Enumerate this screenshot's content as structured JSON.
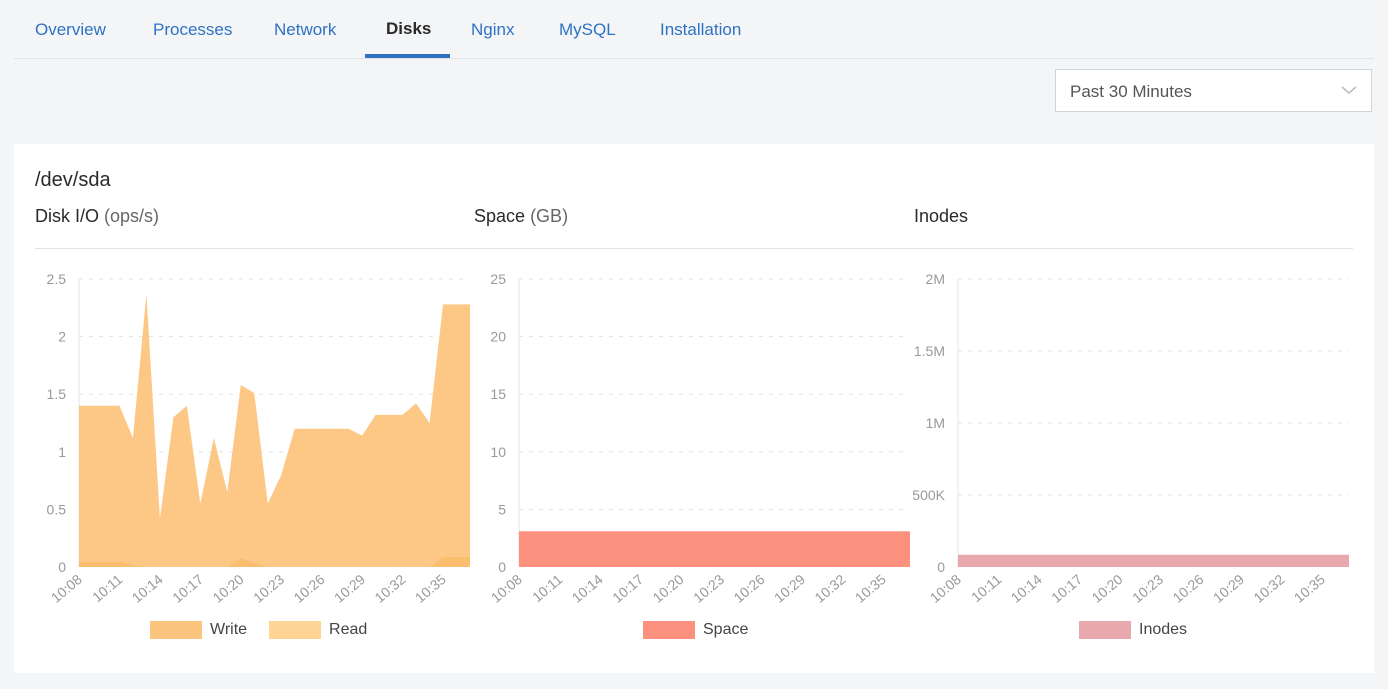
{
  "tabs": [
    {
      "label": "Overview",
      "active": false
    },
    {
      "label": "Processes",
      "active": false
    },
    {
      "label": "Network",
      "active": false
    },
    {
      "label": "Disks",
      "active": true
    },
    {
      "label": "Nginx",
      "active": false
    },
    {
      "label": "MySQL",
      "active": false
    },
    {
      "label": "Installation",
      "active": false
    }
  ],
  "time_range": {
    "selected": "Past 30 Minutes",
    "icon": "chevron-down-icon"
  },
  "device": "/dev/sda",
  "colors": {
    "accent": "#2f6ec0",
    "write": "#fdc886",
    "read": "#fbbd6e",
    "space": "#fc9180",
    "inodes": "#e8a9ae"
  },
  "chart_data": [
    {
      "type": "area",
      "title": "Disk I/O",
      "unit": "(ops/s)",
      "stacked": true,
      "x": [
        "10:08",
        "10:09",
        "10:10",
        "10:11",
        "10:12",
        "10:13",
        "10:14",
        "10:15",
        "10:16",
        "10:17",
        "10:18",
        "10:19",
        "10:20",
        "10:21",
        "10:22",
        "10:23",
        "10:24",
        "10:25",
        "10:26",
        "10:27",
        "10:28",
        "10:29",
        "10:30",
        "10:31",
        "10:32",
        "10:33",
        "10:34",
        "10:35",
        "10:36",
        "10:37"
      ],
      "xticks": [
        "10:08",
        "10:11",
        "10:14",
        "10:17",
        "10:20",
        "10:23",
        "10:26",
        "10:29",
        "10:32",
        "10:35"
      ],
      "yticks": [
        "0",
        "0.5",
        "1",
        "1.5",
        "2",
        "2.5"
      ],
      "ylim": [
        0,
        2.5
      ],
      "grid": true,
      "legend": "bottom",
      "series": [
        {
          "name": "Read",
          "color": "#fbbd6e",
          "values": [
            0.05,
            0.05,
            0.05,
            0.05,
            0.02,
            0,
            0,
            0,
            0,
            0,
            0,
            0,
            0.08,
            0.04,
            0,
            0,
            0,
            0,
            0,
            0,
            0,
            0,
            0,
            0,
            0,
            0,
            0,
            0.09,
            0.09,
            0.09
          ]
        },
        {
          "name": "Write",
          "color": "#fdc886",
          "values": [
            1.35,
            1.35,
            1.35,
            1.35,
            1.1,
            2.37,
            0.42,
            1.3,
            1.4,
            0.55,
            1.12,
            0.65,
            1.5,
            1.47,
            0.55,
            0.8,
            1.2,
            1.2,
            1.2,
            1.2,
            1.2,
            1.14,
            1.32,
            1.32,
            1.32,
            1.42,
            1.25,
            2.19,
            2.19,
            2.19
          ]
        }
      ],
      "legend_entries": [
        {
          "name": "Write",
          "color": "#fbc47f"
        },
        {
          "name": "Read",
          "color": "#ffd495"
        }
      ]
    },
    {
      "type": "area",
      "title": "Space",
      "unit": "(GB)",
      "xticks": [
        "10:08",
        "10:11",
        "10:14",
        "10:17",
        "10:20",
        "10:23",
        "10:26",
        "10:29",
        "10:32",
        "10:35"
      ],
      "yticks": [
        "0",
        "5",
        "10",
        "15",
        "20",
        "25"
      ],
      "ylim": [
        0,
        25
      ],
      "grid": true,
      "legend": "bottom",
      "series": [
        {
          "name": "Space",
          "color": "#fc9180",
          "values": [
            3.1,
            3.1,
            3.1,
            3.1,
            3.1,
            3.1,
            3.1,
            3.1,
            3.1,
            3.1,
            3.1,
            3.1,
            3.1,
            3.1,
            3.1,
            3.1,
            3.1,
            3.1,
            3.1,
            3.1,
            3.1,
            3.1,
            3.1,
            3.1,
            3.1,
            3.1,
            3.1,
            3.1,
            3.1,
            3.1
          ]
        }
      ],
      "legend_entries": [
        {
          "name": "Space",
          "color": "#fc9180"
        }
      ]
    },
    {
      "type": "area",
      "title": "Inodes",
      "unit": "",
      "xticks": [
        "10:08",
        "10:11",
        "10:14",
        "10:17",
        "10:20",
        "10:23",
        "10:26",
        "10:29",
        "10:32",
        "10:35"
      ],
      "yticks": [
        "0",
        "500K",
        "1M",
        "1.5M",
        "2M"
      ],
      "ylim": [
        0,
        2000000
      ],
      "grid": true,
      "legend": "bottom",
      "series": [
        {
          "name": "Inodes",
          "color": "#e8a9ae",
          "values": [
            85000,
            85000,
            85000,
            85000,
            85000,
            85000,
            85000,
            85000,
            85000,
            85000,
            85000,
            85000,
            85000,
            85000,
            85000,
            85000,
            85000,
            85000,
            85000,
            85000,
            85000,
            85000,
            85000,
            85000,
            85000,
            85000,
            85000,
            85000,
            85000,
            85000
          ]
        }
      ],
      "legend_entries": [
        {
          "name": "Inodes",
          "color": "#e8a9ae"
        }
      ]
    }
  ]
}
